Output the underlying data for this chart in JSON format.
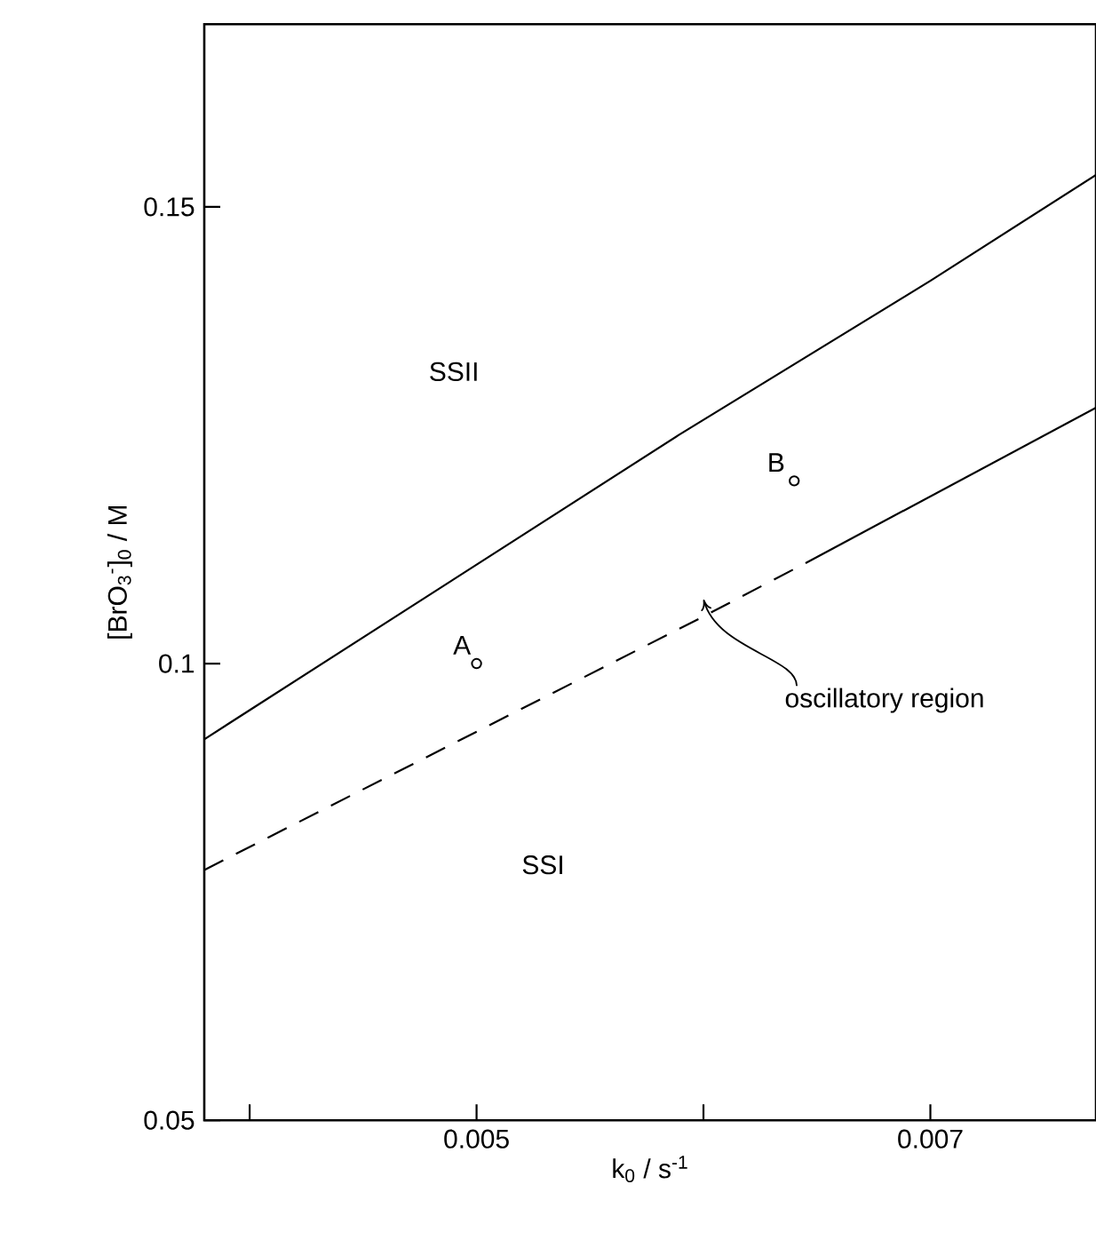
{
  "chart_data": {
    "type": "line",
    "xlabel": "k$_{0}$ / s$^{-1}$",
    "ylabel": "[BrO$_{3}$$^{-}$]$_{0}$ / M",
    "xlim": [
      0.0038,
      0.00773
    ],
    "ylim": [
      0.05,
      0.17
    ],
    "xticks": [
      {
        "value": 0.004,
        "label": null
      },
      0.005,
      {
        "value": 0.006,
        "label": null
      },
      0.007
    ],
    "yticks": [
      0.05,
      0.1,
      0.15
    ],
    "series": [
      {
        "color": "#000000",
        "line_style": "solid",
        "x": [
          0.0038,
          0.004,
          0.00589,
          0.007,
          0.00773
        ],
        "values": [
          0.0917,
          0.0949,
          0.125,
          0.1419,
          0.1535
        ]
      },
      {
        "color": "#000000",
        "line_style": "dashed",
        "x": [
          0.0038,
          0.00598,
          0.00645
        ],
        "values": [
          0.0774,
          0.1049,
          0.111
        ]
      },
      {
        "color": "#000000",
        "line_style": "solid",
        "x": [
          0.00645,
          0.00773
        ],
        "values": [
          0.111,
          0.128
        ]
      },
      {
        "type": "scatter",
        "color": "#000000",
        "marker": "circle",
        "x": [
          0.005,
          0.0064
        ],
        "values": [
          0.1,
          0.12
        ]
      }
    ],
    "annotations": [
      {
        "text": "A",
        "x": 0.005,
        "y": 0.1
      },
      {
        "text": "B",
        "x": 0.0064,
        "y": 0.12
      },
      "SSII",
      "SSI",
      "oscillatory region"
    ]
  }
}
